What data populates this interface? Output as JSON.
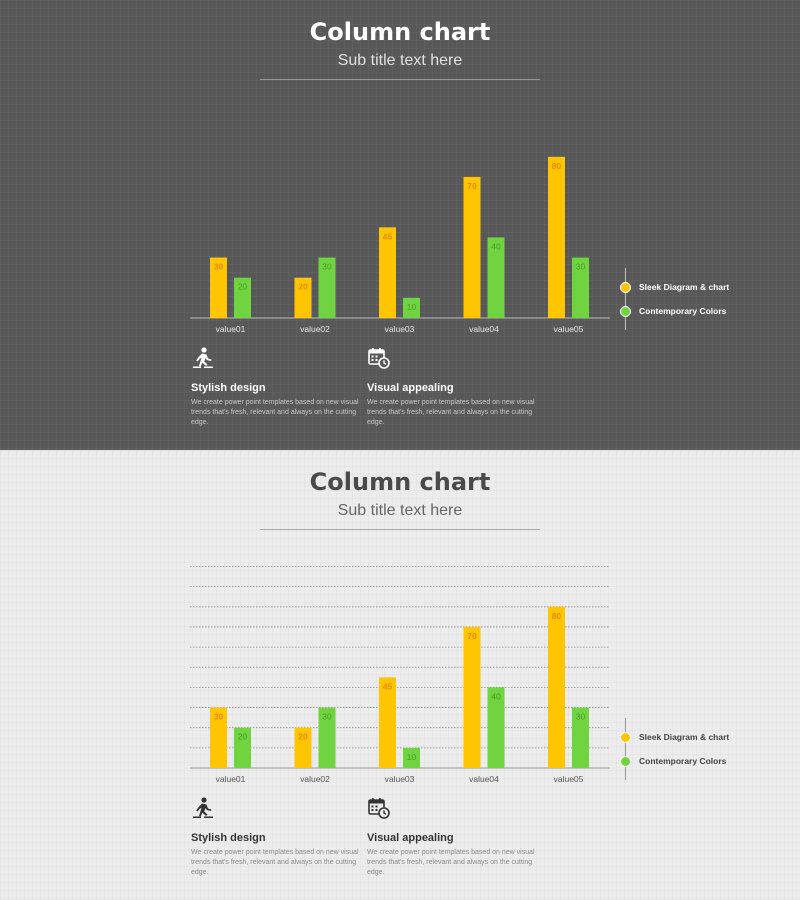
{
  "slides": [
    {
      "theme": "dark",
      "title": "Column chart",
      "subtitle": "Sub title text here",
      "legend": [
        "Sleek Diagram & chart",
        "Contemporary Colors"
      ],
      "features": [
        {
          "icon": "running-person-icon",
          "heading": "Stylish design",
          "body": "We create power point templates based on new visual trends that's fresh, relevant and always on the cutting edge."
        },
        {
          "icon": "calendar-clock-icon",
          "heading": "Visual appealing",
          "body": "We create power point templates based on new visual trends that's fresh, relevant and always on the cutting edge."
        }
      ]
    },
    {
      "theme": "light",
      "title": "Column chart",
      "subtitle": "Sub title text here",
      "legend": [
        "Sleek Diagram & chart",
        "Contemporary Colors"
      ],
      "features": [
        {
          "icon": "running-person-icon",
          "heading": "Stylish design",
          "body": "We create power point templates based on new visual trends that's fresh, relevant and always on the cutting edge."
        },
        {
          "icon": "calendar-clock-icon",
          "heading": "Visual appealing",
          "body": "We create power point templates based on new visual trends that's fresh, relevant and always on the cutting edge."
        }
      ]
    }
  ],
  "colors": {
    "yellow": "#ffc600",
    "green": "#6fd43f",
    "label_yellow": "#e88a00",
    "label_green": "#4a9a2a"
  },
  "chart_data": [
    {
      "type": "bar",
      "categories": [
        "value01",
        "value02",
        "value03",
        "value04",
        "value05"
      ],
      "series": [
        {
          "name": "Sleek Diagram & chart",
          "values": [
            30,
            20,
            45,
            70,
            80
          ],
          "color": "#ffc600"
        },
        {
          "name": "Contemporary Colors",
          "values": [
            20,
            30,
            10,
            40,
            30
          ],
          "color": "#6fd43f"
        }
      ],
      "ylim": [
        0,
        80
      ],
      "grid": false,
      "legend": "right"
    },
    {
      "type": "bar",
      "categories": [
        "value01",
        "value02",
        "value03",
        "value04",
        "value05"
      ],
      "series": [
        {
          "name": "Sleek Diagram & chart",
          "values": [
            30,
            20,
            45,
            70,
            80
          ],
          "color": "#ffc600"
        },
        {
          "name": "Contemporary Colors",
          "values": [
            20,
            30,
            10,
            40,
            30
          ],
          "color": "#6fd43f"
        }
      ],
      "ylim": [
        0,
        100
      ],
      "grid": true,
      "legend": "right"
    }
  ]
}
